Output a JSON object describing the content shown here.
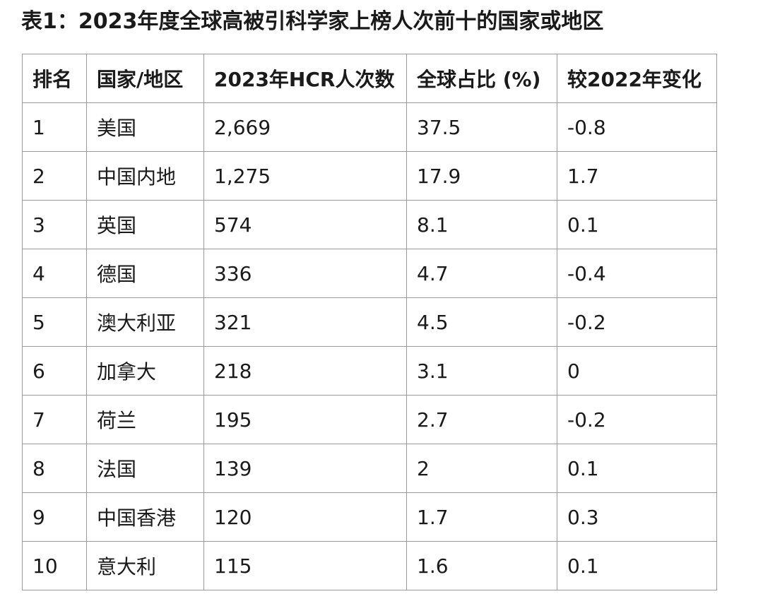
{
  "title": "表1：2023年度全球高被引科学家上榜人次前十的国家或地区",
  "table": {
    "headers": [
      "排名",
      "国家/地区",
      "2023年HCR人次数",
      "全球占比 (%)",
      "较2022年变化"
    ],
    "rows": [
      [
        "1",
        "美国",
        "2,669",
        "37.5",
        "-0.8"
      ],
      [
        "2",
        "中国内地",
        "1,275",
        "17.9",
        "1.7"
      ],
      [
        "3",
        "英国",
        "574",
        "8.1",
        "0.1"
      ],
      [
        "4",
        "德国",
        "336",
        "4.7",
        "-0.4"
      ],
      [
        "5",
        "澳大利亚",
        "321",
        "4.5",
        "-0.2"
      ],
      [
        "6",
        "加拿大",
        "218",
        "3.1",
        "0"
      ],
      [
        "7",
        "荷兰",
        "195",
        "2.7",
        "-0.2"
      ],
      [
        "8",
        "法国",
        "139",
        "2",
        "0.1"
      ],
      [
        "9",
        "中国香港",
        "120",
        "1.7",
        "0.3"
      ],
      [
        "10",
        "意大利",
        "115",
        "1.6",
        "0.1"
      ]
    ]
  }
}
